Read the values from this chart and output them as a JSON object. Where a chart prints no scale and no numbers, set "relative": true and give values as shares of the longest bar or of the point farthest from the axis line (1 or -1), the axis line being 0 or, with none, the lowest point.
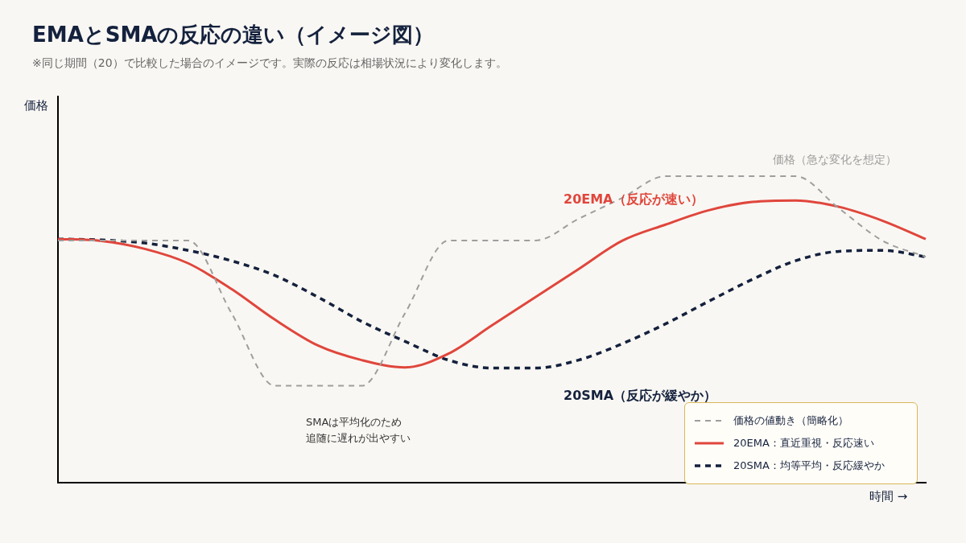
{
  "chart_data": {
    "type": "line",
    "title": "EMAとSMAの反応の違い（イメージ図）",
    "subtitle": "※同じ期間（20）で比較した場合のイメージです。実際の反応は相場状況により変化します。",
    "xlabel": "時間 →",
    "relative": true,
    "legend": "bottom right",
    "grid": false,
    "marker": "none",
    "categories": [
      null,
      null,
      null,
      null,
      null,
      null,
      null,
      null,
      null,
      null,
      null,
      null,
      null,
      null,
      null,
      null,
      null,
      null,
      null,
      null,
      null
    ],
    "series": [
      {
        "name": "価格の値動き（簡略化）",
        "color": "#9e9e9e",
        "line_style": "dashed",
        "values": [
          0.79,
          0.79,
          0.79,
          0.79,
          0.553,
          0.316,
          0.316,
          0.316,
          0.553,
          0.79,
          0.79,
          0.79,
          0.861,
          0.929,
          1,
          1,
          1,
          1,
          0.895,
          0.79,
          0.737
        ]
      },
      {
        "name": "20EMA：直近重視・反応速い",
        "color": "#e0463c",
        "line_style": "solid",
        "values": [
          0.795,
          0.789,
          0.763,
          0.716,
          0.632,
          0.532,
          0.447,
          0.4,
          0.376,
          0.421,
          0.513,
          0.605,
          0.697,
          0.789,
          0.842,
          0.889,
          0.916,
          0.921,
          0.9,
          0.855,
          0.795
        ]
      },
      {
        "name": "20SMA：均等平均・反応緩やか",
        "color": "#14213d",
        "line_style": "dashed",
        "values": [
          0.795,
          0.792,
          0.782,
          0.758,
          0.724,
          0.676,
          0.605,
          0.526,
          0.461,
          0.4,
          0.374,
          0.374,
          0.4,
          0.453,
          0.518,
          0.592,
          0.663,
          0.724,
          0.755,
          0.758,
          0.737
        ]
      }
    ],
    "annotations": [
      "価格（急な変化を想定）",
      "20EMA（反応が速い）",
      "20SMA（反応が緩やか）",
      "SMAは平均化のため",
      "追随に遅れが出やすい",
      "価格"
    ]
  }
}
